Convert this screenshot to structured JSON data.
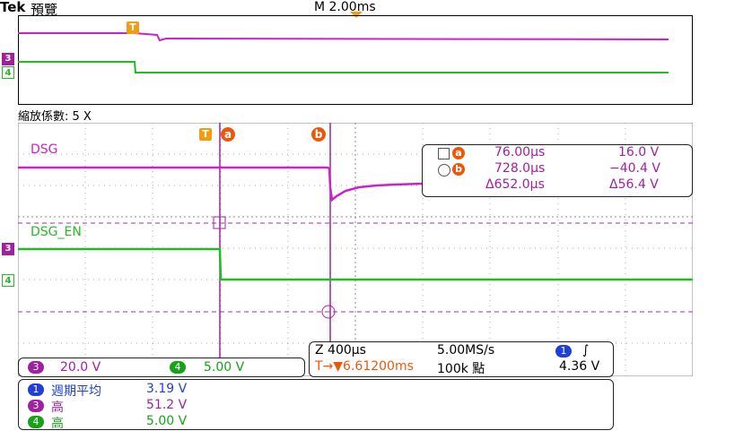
{
  "header": {
    "brand": "Tek",
    "mode": "預覽",
    "timebase": "M 2.00ms"
  },
  "zoom_label": "縮放係數: 5 X",
  "traces": {
    "dsg_label": "DSG",
    "dsg_en_label": "DSG_EN",
    "ch3": "3",
    "ch4": "4",
    "trigger": "T",
    "cursor_a": "a",
    "cursor_b": "b"
  },
  "cursor_readout": {
    "a_time": "76.00µs",
    "a_volt": "16.0 V",
    "b_time": "728.0µs",
    "b_volt": "−40.4 V",
    "delta_time": "Δ652.0µs",
    "delta_volt": "Δ56.4 V"
  },
  "channel_scales": {
    "ch3_label": "3",
    "ch3_scale": "20.0 V",
    "ch4_label": "4",
    "ch4_scale": "5.00 V"
  },
  "timing": {
    "zoom": "Z 400µs",
    "sample_rate": "5.00MS/s",
    "trigger_ch": "1",
    "slope_symbol": "∫",
    "trigger_pos": "T→▼6.61200ms",
    "record_len": "100k 點",
    "trigger_level": "4.36 V"
  },
  "measurements": [
    {
      "ch": "1",
      "name": "週期平均",
      "value": "3.19 V",
      "color": "#1f3fd6"
    },
    {
      "ch": "3",
      "name": "高",
      "value": "51.2 V",
      "color": "#a020a0"
    },
    {
      "ch": "4",
      "name": "高",
      "value": "5.00 V",
      "color": "#17a317"
    }
  ],
  "colors": {
    "ch3": "#cc22cc",
    "ch4": "#22bb22",
    "ch1": "#1f3fd6",
    "marker": "#e8590c",
    "trigger": "#f39c12",
    "grid": "#999999"
  }
}
